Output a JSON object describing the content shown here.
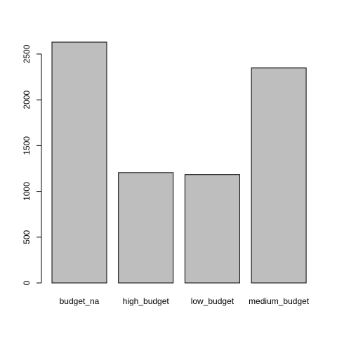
{
  "chart_data": {
    "type": "bar",
    "title": "",
    "xlabel": "",
    "ylabel": "",
    "categories": [
      "budget_na",
      "high_budget",
      "low_budget",
      "medium_budget"
    ],
    "values": [
      2630,
      1205,
      1183,
      2348
    ],
    "ylim": [
      0,
      2630
    ],
    "yticks": [
      0,
      500,
      1000,
      1500,
      2000,
      2500
    ],
    "ytick_labels": [
      "0",
      "500",
      "1000",
      "1500",
      "2000",
      "2500"
    ],
    "grid": false,
    "legend": "none",
    "bar_fill": "#bebebe",
    "bar_stroke": "#000000"
  }
}
